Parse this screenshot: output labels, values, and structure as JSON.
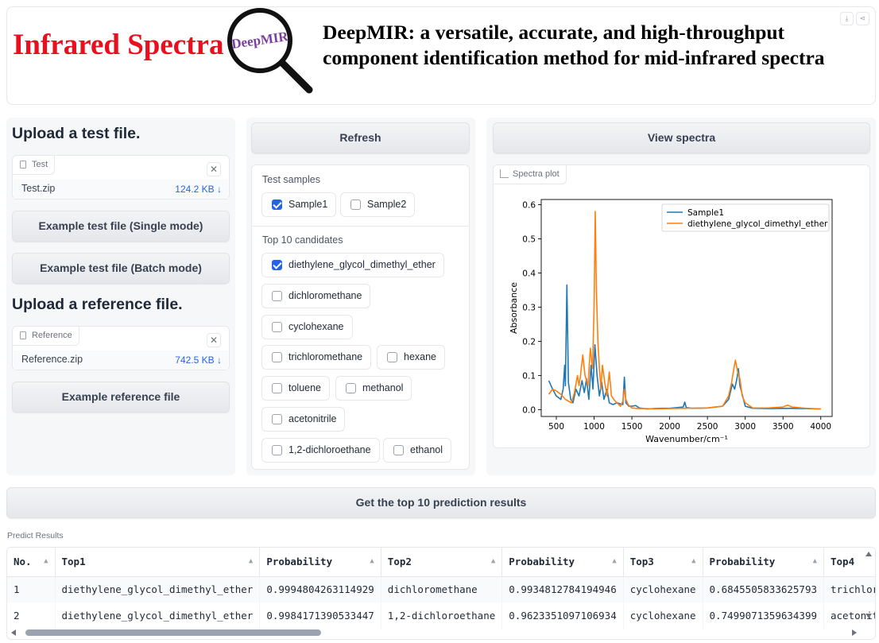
{
  "header": {
    "title": "Infrared Spectra",
    "logo_text": "DeepMIR",
    "description_line1": "DeepMIR: a versatile, accurate, and high-throughput",
    "description_line2": "component identification method for mid-infrared spectra",
    "download_icon": "download-icon",
    "share_icon": "share-icon"
  },
  "upload": {
    "test_heading": "Upload a test file.",
    "test_tag": "Test",
    "test_file_name": "Test.zip",
    "test_file_size": "124.2 KB ↓",
    "example_single": "Example test file (Single mode)",
    "example_batch": "Example test file (Batch mode)",
    "ref_heading": "Upload a reference file.",
    "ref_tag": "Reference",
    "ref_file_name": "Reference.zip",
    "ref_file_size": "742.5 KB ↓",
    "example_reference": "Example reference file",
    "close_glyph": "✕"
  },
  "middle": {
    "refresh_label": "Refresh",
    "test_samples_label": "Test samples",
    "samples": [
      {
        "label": "Sample1",
        "checked": true
      },
      {
        "label": "Sample2",
        "checked": false
      }
    ],
    "candidates_label": "Top 10 candidates",
    "candidates": [
      {
        "label": "diethylene_glycol_dimethyl_ether",
        "checked": true
      },
      {
        "label": "dichloromethane",
        "checked": false
      },
      {
        "label": "cyclohexane",
        "checked": false
      },
      {
        "label": "trichloromethane",
        "checked": false
      },
      {
        "label": "hexane",
        "checked": false
      },
      {
        "label": "toluene",
        "checked": false
      },
      {
        "label": "methanol",
        "checked": false
      },
      {
        "label": "acetonitrile",
        "checked": false
      },
      {
        "label": "1,2-dichloroethane",
        "checked": false
      },
      {
        "label": "ethanol",
        "checked": false
      }
    ]
  },
  "right": {
    "view_spectra_label": "View spectra",
    "plot_tag": "Spectra plot"
  },
  "chart_data": {
    "type": "line",
    "title": "",
    "xlabel": "Wavenumber/cm⁻¹",
    "ylabel": "Absorbance",
    "xlim": [
      300,
      4150
    ],
    "ylim": [
      -0.02,
      0.615
    ],
    "xticks": [
      500,
      1000,
      1500,
      2000,
      2500,
      3000,
      3500,
      4000
    ],
    "yticks": [
      0.0,
      0.1,
      0.2,
      0.3,
      0.4,
      0.5,
      0.6
    ],
    "grid": false,
    "legend": "top-right",
    "series": [
      {
        "name": "Sample1",
        "color": "#1f77b4",
        "points": [
          [
            400,
            0.085
          ],
          [
            450,
            0.06
          ],
          [
            500,
            0.04
          ],
          [
            560,
            0.03
          ],
          [
            590,
            0.06
          ],
          [
            610,
            0.13
          ],
          [
            620,
            0.07
          ],
          [
            640,
            0.365
          ],
          [
            660,
            0.08
          ],
          [
            690,
            0.03
          ],
          [
            720,
            0.02
          ],
          [
            760,
            0.06
          ],
          [
            800,
            0.04
          ],
          [
            840,
            0.085
          ],
          [
            870,
            0.05
          ],
          [
            900,
            0.09
          ],
          [
            930,
            0.03
          ],
          [
            960,
            0.13
          ],
          [
            985,
            0.06
          ],
          [
            1010,
            0.19
          ],
          [
            1040,
            0.1
          ],
          [
            1070,
            0.04
          ],
          [
            1100,
            0.08
          ],
          [
            1130,
            0.03
          ],
          [
            1170,
            0.06
          ],
          [
            1200,
            0.02
          ],
          [
            1250,
            0.015
          ],
          [
            1300,
            0.02
          ],
          [
            1380,
            0.015
          ],
          [
            1400,
            0.095
          ],
          [
            1420,
            0.02
          ],
          [
            1460,
            0.01
          ],
          [
            1500,
            0.01
          ],
          [
            1550,
            0.012
          ],
          [
            1600,
            0.005
          ],
          [
            1700,
            0.002
          ],
          [
            1800,
            0.003
          ],
          [
            1900,
            0.004
          ],
          [
            2000,
            0.004
          ],
          [
            2100,
            0.006
          ],
          [
            2180,
            0.008
          ],
          [
            2200,
            0.022
          ],
          [
            2220,
            0.006
          ],
          [
            2300,
            0.004
          ],
          [
            2500,
            0.005
          ],
          [
            2700,
            0.01
          ],
          [
            2780,
            0.03
          ],
          [
            2830,
            0.075
          ],
          [
            2860,
            0.06
          ],
          [
            2890,
            0.09
          ],
          [
            2910,
            0.12
          ],
          [
            2930,
            0.07
          ],
          [
            2960,
            0.045
          ],
          [
            3000,
            0.01
          ],
          [
            3100,
            0.004
          ],
          [
            3300,
            0.003
          ],
          [
            3600,
            0.004
          ],
          [
            4000,
            0.002
          ]
        ]
      },
      {
        "name": "diethylene_glycol_dimethyl_ether",
        "color": "#ff7f0e",
        "points": [
          [
            400,
            0.045
          ],
          [
            450,
            0.06
          ],
          [
            500,
            0.055
          ],
          [
            560,
            0.045
          ],
          [
            620,
            0.03
          ],
          [
            700,
            0.02
          ],
          [
            740,
            0.05
          ],
          [
            780,
            0.1
          ],
          [
            800,
            0.07
          ],
          [
            820,
            0.1
          ],
          [
            850,
            0.16
          ],
          [
            880,
            0.1
          ],
          [
            920,
            0.07
          ],
          [
            950,
            0.18
          ],
          [
            980,
            0.12
          ],
          [
            1000,
            0.3
          ],
          [
            1015,
            0.58
          ],
          [
            1030,
            0.35
          ],
          [
            1050,
            0.2
          ],
          [
            1070,
            0.12
          ],
          [
            1090,
            0.06
          ],
          [
            1110,
            0.13
          ],
          [
            1140,
            0.08
          ],
          [
            1170,
            0.04
          ],
          [
            1200,
            0.11
          ],
          [
            1230,
            0.04
          ],
          [
            1260,
            0.03
          ],
          [
            1300,
            0.02
          ],
          [
            1350,
            0.01
          ],
          [
            1380,
            0.025
          ],
          [
            1400,
            0.06
          ],
          [
            1420,
            0.03
          ],
          [
            1450,
            0.015
          ],
          [
            1500,
            0.005
          ],
          [
            1600,
            0.003
          ],
          [
            1700,
            0.003
          ],
          [
            1800,
            0.002
          ],
          [
            2000,
            0.003
          ],
          [
            2200,
            0.004
          ],
          [
            2500,
            0.005
          ],
          [
            2700,
            0.01
          ],
          [
            2780,
            0.04
          ],
          [
            2820,
            0.08
          ],
          [
            2850,
            0.12
          ],
          [
            2870,
            0.145
          ],
          [
            2900,
            0.11
          ],
          [
            2930,
            0.09
          ],
          [
            2960,
            0.04
          ],
          [
            3000,
            0.02
          ],
          [
            3100,
            0.005
          ],
          [
            3300,
            0.005
          ],
          [
            3500,
            0.008
          ],
          [
            3560,
            0.013
          ],
          [
            3620,
            0.008
          ],
          [
            3800,
            0.004
          ],
          [
            4000,
            0.002
          ]
        ]
      }
    ]
  },
  "results": {
    "get_button_label": "Get the top 10 prediction results",
    "section_label": "Predict Results",
    "columns": [
      "No.",
      "Top1",
      "Probability",
      "Top2",
      "Probability",
      "Top3",
      "Probability",
      "Top4"
    ],
    "rows": [
      [
        "1",
        "diethylene_glycol_dimethyl_ether",
        "0.9994804263114929",
        "dichloromethane",
        "0.9934812784194946",
        "cyclohexane",
        "0.6845505833625793",
        "trichloro"
      ],
      [
        "2",
        "diethylene_glycol_dimethyl_ether",
        "0.9984171390533447",
        "1,2-dichloroethane",
        "0.9623351097106934",
        "cyclohexane",
        "0.7499071359634399",
        "acetonit"
      ]
    ]
  }
}
